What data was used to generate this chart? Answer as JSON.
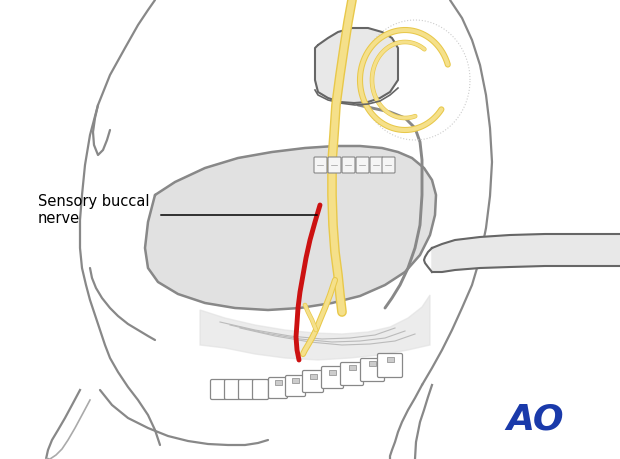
{
  "background_color": "#ffffff",
  "figure_width": 6.2,
  "figure_height": 4.59,
  "dpi": 100,
  "gray_outline": "#888888",
  "gray_light_outline": "#aaaaaa",
  "gray_dark": "#666666",
  "fill_gray_light": "#e8e8e8",
  "fill_gray_medium": "#d8d8d8",
  "fill_gray_surgical": "#d5d5d5",
  "red_color": "#cc1111",
  "yellow_color": "#e8c84a",
  "yellow_fill": "#f5e08a",
  "ao_color": "#1a3aaa",
  "label_text": "Sensory buccal\nnerve",
  "label_fontsize": 10.5,
  "ao_fontsize": 26,
  "tooth_face": "#f5f5f5",
  "tooth_edge": "#888888"
}
